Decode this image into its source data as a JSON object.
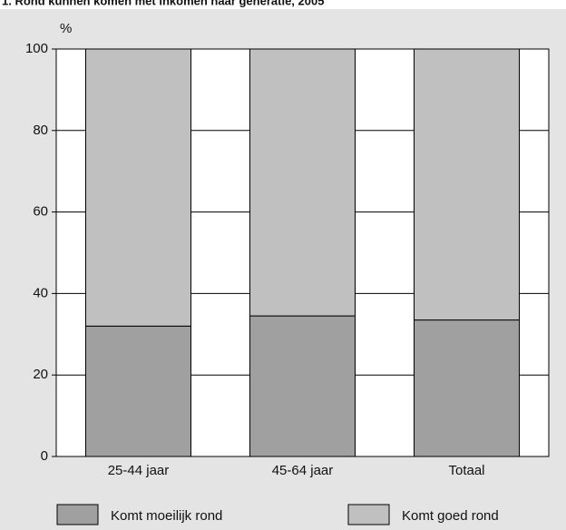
{
  "chart_data": {
    "type": "stacked-bar",
    "title": "1. Rond kunnen komen met inkomen naar generatie, 2005",
    "y_label": "%",
    "categories": [
      "25-44 jaar",
      "45-64 jaar",
      "Totaal"
    ],
    "series": [
      {
        "name": "Komt moeilijk rond",
        "color": "#a0a0a0",
        "values": [
          32,
          34.5,
          33.5
        ]
      },
      {
        "name": "Komt goed rond",
        "color": "#c0c0c0",
        "values": [
          68,
          65.5,
          66.5
        ]
      }
    ],
    "ylim": [
      0,
      100
    ],
    "yticks": [
      0,
      20,
      40,
      60,
      80,
      100
    ],
    "grid": true
  }
}
